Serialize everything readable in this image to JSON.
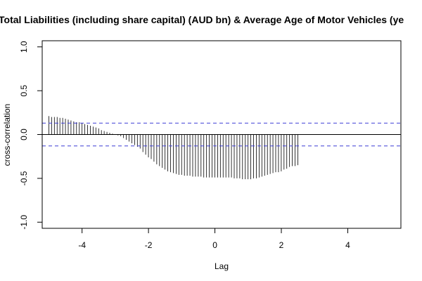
{
  "chart_data": {
    "type": "ccf",
    "title": "Total Liabilities (including share capital) (AUD bn)  & Average Age of Motor Vehicles (ye",
    "xlabel": "Lag",
    "ylabel": "cross-correlation",
    "xlim": [
      -5.2,
      5.6
    ],
    "ylim": [
      -1.07,
      1.07
    ],
    "x_ticks": [
      -4,
      -2,
      0,
      2,
      4
    ],
    "y_ticks": [
      -1.0,
      -0.5,
      0.0,
      0.5,
      1.0
    ],
    "x_tick_labels": [
      "-4",
      "-2",
      "0",
      "2",
      "4"
    ],
    "y_tick_labels": [
      "-1.0",
      "-0.5",
      "0.0",
      "0.5",
      "1.0"
    ],
    "confidence_bound": 0.13,
    "lag_start": -5.0,
    "lag_step": 0.0833,
    "values": [
      0.21,
      0.2,
      0.2,
      0.2,
      0.19,
      0.19,
      0.18,
      0.17,
      0.16,
      0.15,
      0.14,
      0.14,
      0.13,
      0.12,
      0.11,
      0.1,
      0.09,
      0.08,
      0.07,
      0.05,
      0.04,
      0.03,
      0.02,
      0.01,
      0,
      -0.01,
      -0.02,
      -0.04,
      -0.06,
      -0.08,
      -0.1,
      -0.12,
      -0.14,
      -0.16,
      -0.2,
      -0.23,
      -0.26,
      -0.28,
      -0.31,
      -0.34,
      -0.36,
      -0.38,
      -0.4,
      -0.42,
      -0.43,
      -0.44,
      -0.45,
      -0.46,
      -0.46,
      -0.47,
      -0.47,
      -0.47,
      -0.48,
      -0.48,
      -0.48,
      -0.48,
      -0.49,
      -0.49,
      -0.49,
      -0.49,
      -0.49,
      -0.49,
      -0.49,
      -0.49,
      -0.49,
      -0.49,
      -0.49,
      -0.5,
      -0.5,
      -0.5,
      -0.51,
      -0.51,
      -0.51,
      -0.51,
      -0.5,
      -0.5,
      -0.49,
      -0.48,
      -0.47,
      -0.46,
      -0.45,
      -0.44,
      -0.43,
      -0.43,
      -0.42,
      -0.4,
      -0.39,
      -0.37,
      -0.36,
      -0.36,
      -0.35
    ],
    "colors": {
      "bars": "#000000",
      "confidence_lines": "#3b3bd6",
      "zero_line": "#000000"
    }
  }
}
